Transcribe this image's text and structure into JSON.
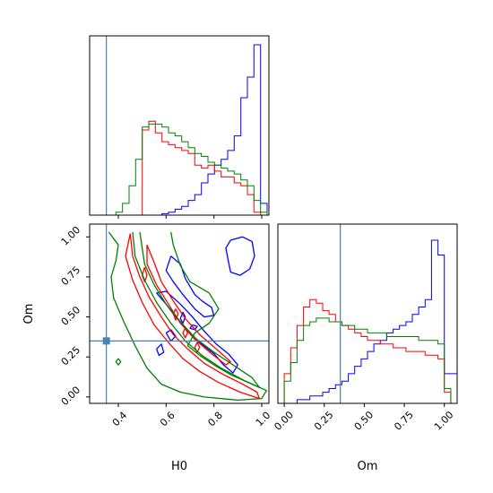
{
  "chart_data": {
    "type": "corner",
    "parameters": [
      "H0",
      "Om"
    ],
    "truths": {
      "H0": 0.35,
      "Om": 0.35
    },
    "truth_color": "#4682b4",
    "series_colors": [
      "#0000ff",
      "#ff0000",
      "#008000"
    ],
    "ranges": {
      "H0": [
        0.28,
        1.03
      ],
      "Om": [
        -0.04,
        1.08
      ]
    },
    "ticks": {
      "H0": [
        0.4,
        0.6,
        0.8,
        1.0
      ],
      "H0_labels": [
        "0.4",
        "0.6",
        "0.8",
        "1.0"
      ],
      "Om": [
        0.0,
        0.25,
        0.5,
        0.75,
        1.0
      ],
      "Om_labels": [
        "0.00",
        "0.25",
        "0.50",
        "0.75",
        "1.00"
      ]
    },
    "xlabels": {
      "H0": "H0",
      "Om": "Om"
    },
    "ylabel": "Om",
    "histograms": {
      "H0": {
        "edges": [
          0.28,
          0.3075,
          0.335,
          0.3625,
          0.39,
          0.4175,
          0.445,
          0.4725,
          0.5,
          0.5275,
          0.555,
          0.5825,
          0.61,
          0.6375,
          0.665,
          0.6925,
          0.72,
          0.7475,
          0.775,
          0.8025,
          0.83,
          0.8575,
          0.885,
          0.9125,
          0.94,
          0.9675,
          0.995,
          1.0225
        ],
        "series": [
          {
            "color": "#0000ff",
            "values": [
              0,
              0,
              0,
              0,
              0,
              0,
              0,
              0,
              0,
              0,
              0,
              0.5,
              1,
              2,
              3,
              5,
              7,
              11,
              14,
              17,
              19,
              22,
              27,
              40,
              47,
              58,
              4
            ]
          },
          {
            "color": "#ff0000",
            "values": [
              0,
              0,
              0,
              0,
              0,
              0,
              0,
              0,
              29,
              32,
              28,
              25,
              24,
              23,
              22,
              21,
              17,
              16,
              17,
              15,
              13,
              13,
              11,
              10,
              7,
              1,
              0
            ]
          },
          {
            "color": "#008000",
            "values": [
              0,
              0,
              0,
              0,
              1,
              4,
              10,
              19,
              30,
              31,
              31,
              30,
              28,
              27,
              25,
              23,
              21,
              20,
              18,
              17,
              16,
              15,
              14,
              12,
              10,
              5,
              1
            ]
          }
        ]
      },
      "Om": {
        "edges": [
          -0.04,
          0.0,
          0.04,
          0.08,
          0.12,
          0.16,
          0.2,
          0.24,
          0.28,
          0.32,
          0.36,
          0.4,
          0.44,
          0.48,
          0.52,
          0.56,
          0.6,
          0.64,
          0.68,
          0.72,
          0.76,
          0.8,
          0.84,
          0.88,
          0.92,
          0.96,
          1.0,
          1.04,
          1.08
        ],
        "series": [
          {
            "color": "#0000ff",
            "values": [
              0,
              0,
              0,
              1,
              1,
              2,
              2,
              3,
              4,
              5,
              6,
              8,
              10,
              12,
              14,
              16,
              17,
              19,
              20,
              21,
              22,
              24,
              26,
              28,
              44,
              40,
              8,
              8
            ]
          },
          {
            "color": "#ff0000",
            "values": [
              0,
              8,
              15,
              21,
              26,
              28,
              27,
              25,
              24,
              22,
              21,
              20,
              19,
              18,
              17,
              17,
              16,
              16,
              15,
              15,
              14,
              14,
              14,
              13,
              13,
              12,
              3,
              0
            ]
          },
          {
            "color": "#008000",
            "values": [
              0,
              6,
              11,
              17,
              21,
              22,
              23,
              23,
              22,
              22,
              21,
              21,
              20,
              20,
              19,
              19,
              19,
              18,
              18,
              18,
              18,
              18,
              17,
              17,
              17,
              16,
              4,
              0
            ]
          }
        ]
      }
    },
    "contours": [
      {
        "color": "#0000ff",
        "paths": [
          [
            [
              0.87,
              0.98
            ],
            [
              0.92,
              1.0
            ],
            [
              0.96,
              0.97
            ],
            [
              0.97,
              0.88
            ],
            [
              0.95,
              0.8
            ],
            [
              0.91,
              0.76
            ],
            [
              0.87,
              0.78
            ],
            [
              0.86,
              0.85
            ],
            [
              0.85,
              0.93
            ],
            [
              0.87,
              0.98
            ]
          ],
          [
            [
              0.62,
              0.88
            ],
            [
              0.66,
              0.83
            ],
            [
              0.68,
              0.74
            ],
            [
              0.72,
              0.64
            ],
            [
              0.75,
              0.6
            ],
            [
              0.79,
              0.56
            ],
            [
              0.8,
              0.51
            ],
            [
              0.76,
              0.5
            ],
            [
              0.72,
              0.55
            ],
            [
              0.67,
              0.64
            ],
            [
              0.63,
              0.72
            ],
            [
              0.6,
              0.79
            ],
            [
              0.62,
              0.88
            ]
          ],
          [
            [
              0.56,
              0.65
            ],
            [
              0.6,
              0.58
            ],
            [
              0.64,
              0.5
            ],
            [
              0.69,
              0.42
            ],
            [
              0.74,
              0.34
            ],
            [
              0.8,
              0.27
            ],
            [
              0.84,
              0.2
            ],
            [
              0.88,
              0.15
            ],
            [
              0.9,
              0.2
            ],
            [
              0.86,
              0.27
            ],
            [
              0.81,
              0.33
            ],
            [
              0.76,
              0.41
            ],
            [
              0.71,
              0.5
            ],
            [
              0.66,
              0.58
            ],
            [
              0.6,
              0.66
            ],
            [
              0.56,
              0.65
            ]
          ],
          [
            [
              0.6,
              0.4
            ],
            [
              0.62,
              0.42
            ],
            [
              0.64,
              0.38
            ],
            [
              0.62,
              0.35
            ],
            [
              0.6,
              0.4
            ]
          ],
          [
            [
              0.56,
              0.3
            ],
            [
              0.58,
              0.33
            ],
            [
              0.59,
              0.28
            ],
            [
              0.57,
              0.26
            ],
            [
              0.56,
              0.3
            ]
          ],
          [
            [
              0.67,
              0.53
            ],
            [
              0.68,
              0.5
            ],
            [
              0.67,
              0.46
            ],
            [
              0.66,
              0.49
            ],
            [
              0.67,
              0.53
            ]
          ],
          [
            [
              0.71,
              0.45
            ],
            [
              0.73,
              0.44
            ],
            [
              0.72,
              0.42
            ],
            [
              0.7,
              0.43
            ],
            [
              0.71,
              0.45
            ]
          ]
        ]
      },
      {
        "color": "#ff0000",
        "paths": [
          [
            [
              0.45,
              1.02
            ],
            [
              0.46,
              0.88
            ],
            [
              0.49,
              0.75
            ],
            [
              0.53,
              0.62
            ],
            [
              0.58,
              0.5
            ],
            [
              0.63,
              0.39
            ],
            [
              0.69,
              0.3
            ],
            [
              0.76,
              0.21
            ],
            [
              0.84,
              0.14
            ],
            [
              0.92,
              0.08
            ],
            [
              0.98,
              0.03
            ],
            [
              0.99,
              -0.01
            ],
            [
              0.91,
              0.03
            ],
            [
              0.82,
              0.09
            ],
            [
              0.74,
              0.16
            ],
            [
              0.67,
              0.24
            ],
            [
              0.61,
              0.34
            ],
            [
              0.55,
              0.45
            ],
            [
              0.5,
              0.59
            ],
            [
              0.46,
              0.73
            ],
            [
              0.43,
              0.88
            ],
            [
              0.45,
              1.02
            ]
          ],
          [
            [
              0.52,
              0.95
            ],
            [
              0.52,
              0.83
            ],
            [
              0.56,
              0.7
            ],
            [
              0.61,
              0.58
            ],
            [
              0.66,
              0.46
            ],
            [
              0.72,
              0.36
            ],
            [
              0.79,
              0.27
            ],
            [
              0.85,
              0.2
            ],
            [
              0.87,
              0.22
            ],
            [
              0.81,
              0.3
            ],
            [
              0.74,
              0.39
            ],
            [
              0.68,
              0.49
            ],
            [
              0.63,
              0.6
            ],
            [
              0.58,
              0.72
            ],
            [
              0.55,
              0.84
            ],
            [
              0.52,
              0.95
            ]
          ],
          [
            [
              0.51,
              0.81
            ],
            [
              0.52,
              0.76
            ],
            [
              0.51,
              0.72
            ],
            [
              0.5,
              0.76
            ],
            [
              0.51,
              0.81
            ]
          ],
          [
            [
              0.64,
              0.55
            ],
            [
              0.65,
              0.52
            ],
            [
              0.64,
              0.48
            ],
            [
              0.63,
              0.52
            ],
            [
              0.64,
              0.55
            ]
          ],
          [
            [
              0.68,
              0.43
            ],
            [
              0.69,
              0.4
            ],
            [
              0.68,
              0.37
            ],
            [
              0.67,
              0.4
            ],
            [
              0.68,
              0.43
            ]
          ],
          [
            [
              0.73,
              0.34
            ],
            [
              0.74,
              0.31
            ],
            [
              0.73,
              0.28
            ],
            [
              0.72,
              0.31
            ],
            [
              0.73,
              0.34
            ]
          ]
        ]
      },
      {
        "color": "#008000",
        "paths": [
          [
            [
              0.36,
              1.03
            ],
            [
              0.4,
              0.95
            ],
            [
              0.39,
              0.85
            ],
            [
              0.37,
              0.75
            ],
            [
              0.38,
              0.62
            ],
            [
              0.42,
              0.48
            ],
            [
              0.47,
              0.32
            ],
            [
              0.52,
              0.18
            ],
            [
              0.58,
              0.08
            ],
            [
              0.66,
              0.03
            ],
            [
              0.76,
              0.0
            ],
            [
              0.9,
              -0.02
            ],
            [
              1.0,
              -0.01
            ],
            [
              1.02,
              0.04
            ],
            [
              0.96,
              0.08
            ],
            [
              0.87,
              0.14
            ],
            [
              0.8,
              0.2
            ],
            [
              0.74,
              0.26
            ],
            [
              0.69,
              0.32
            ],
            [
              0.72,
              0.4
            ],
            [
              0.78,
              0.46
            ],
            [
              0.82,
              0.55
            ],
            [
              0.78,
              0.65
            ],
            [
              0.7,
              0.72
            ],
            [
              0.66,
              0.82
            ],
            [
              0.63,
              0.95
            ],
            [
              0.62,
              1.03
            ]
          ],
          [
            [
              0.46,
              1.03
            ],
            [
              0.47,
              0.88
            ],
            [
              0.51,
              0.73
            ],
            [
              0.56,
              0.59
            ],
            [
              0.62,
              0.46
            ],
            [
              0.68,
              0.35
            ],
            [
              0.75,
              0.26
            ],
            [
              0.83,
              0.18
            ],
            [
              0.93,
              0.1
            ],
            [
              0.99,
              0.06
            ],
            [
              0.96,
              0.12
            ],
            [
              0.88,
              0.2
            ],
            [
              0.8,
              0.28
            ],
            [
              0.72,
              0.37
            ],
            [
              0.66,
              0.47
            ],
            [
              0.6,
              0.58
            ],
            [
              0.55,
              0.7
            ],
            [
              0.51,
              0.83
            ],
            [
              0.49,
              1.03
            ]
          ],
          [
            [
              0.4,
              0.24
            ],
            [
              0.41,
              0.22
            ],
            [
              0.4,
              0.2
            ],
            [
              0.39,
              0.22
            ],
            [
              0.4,
              0.24
            ]
          ]
        ]
      }
    ]
  }
}
